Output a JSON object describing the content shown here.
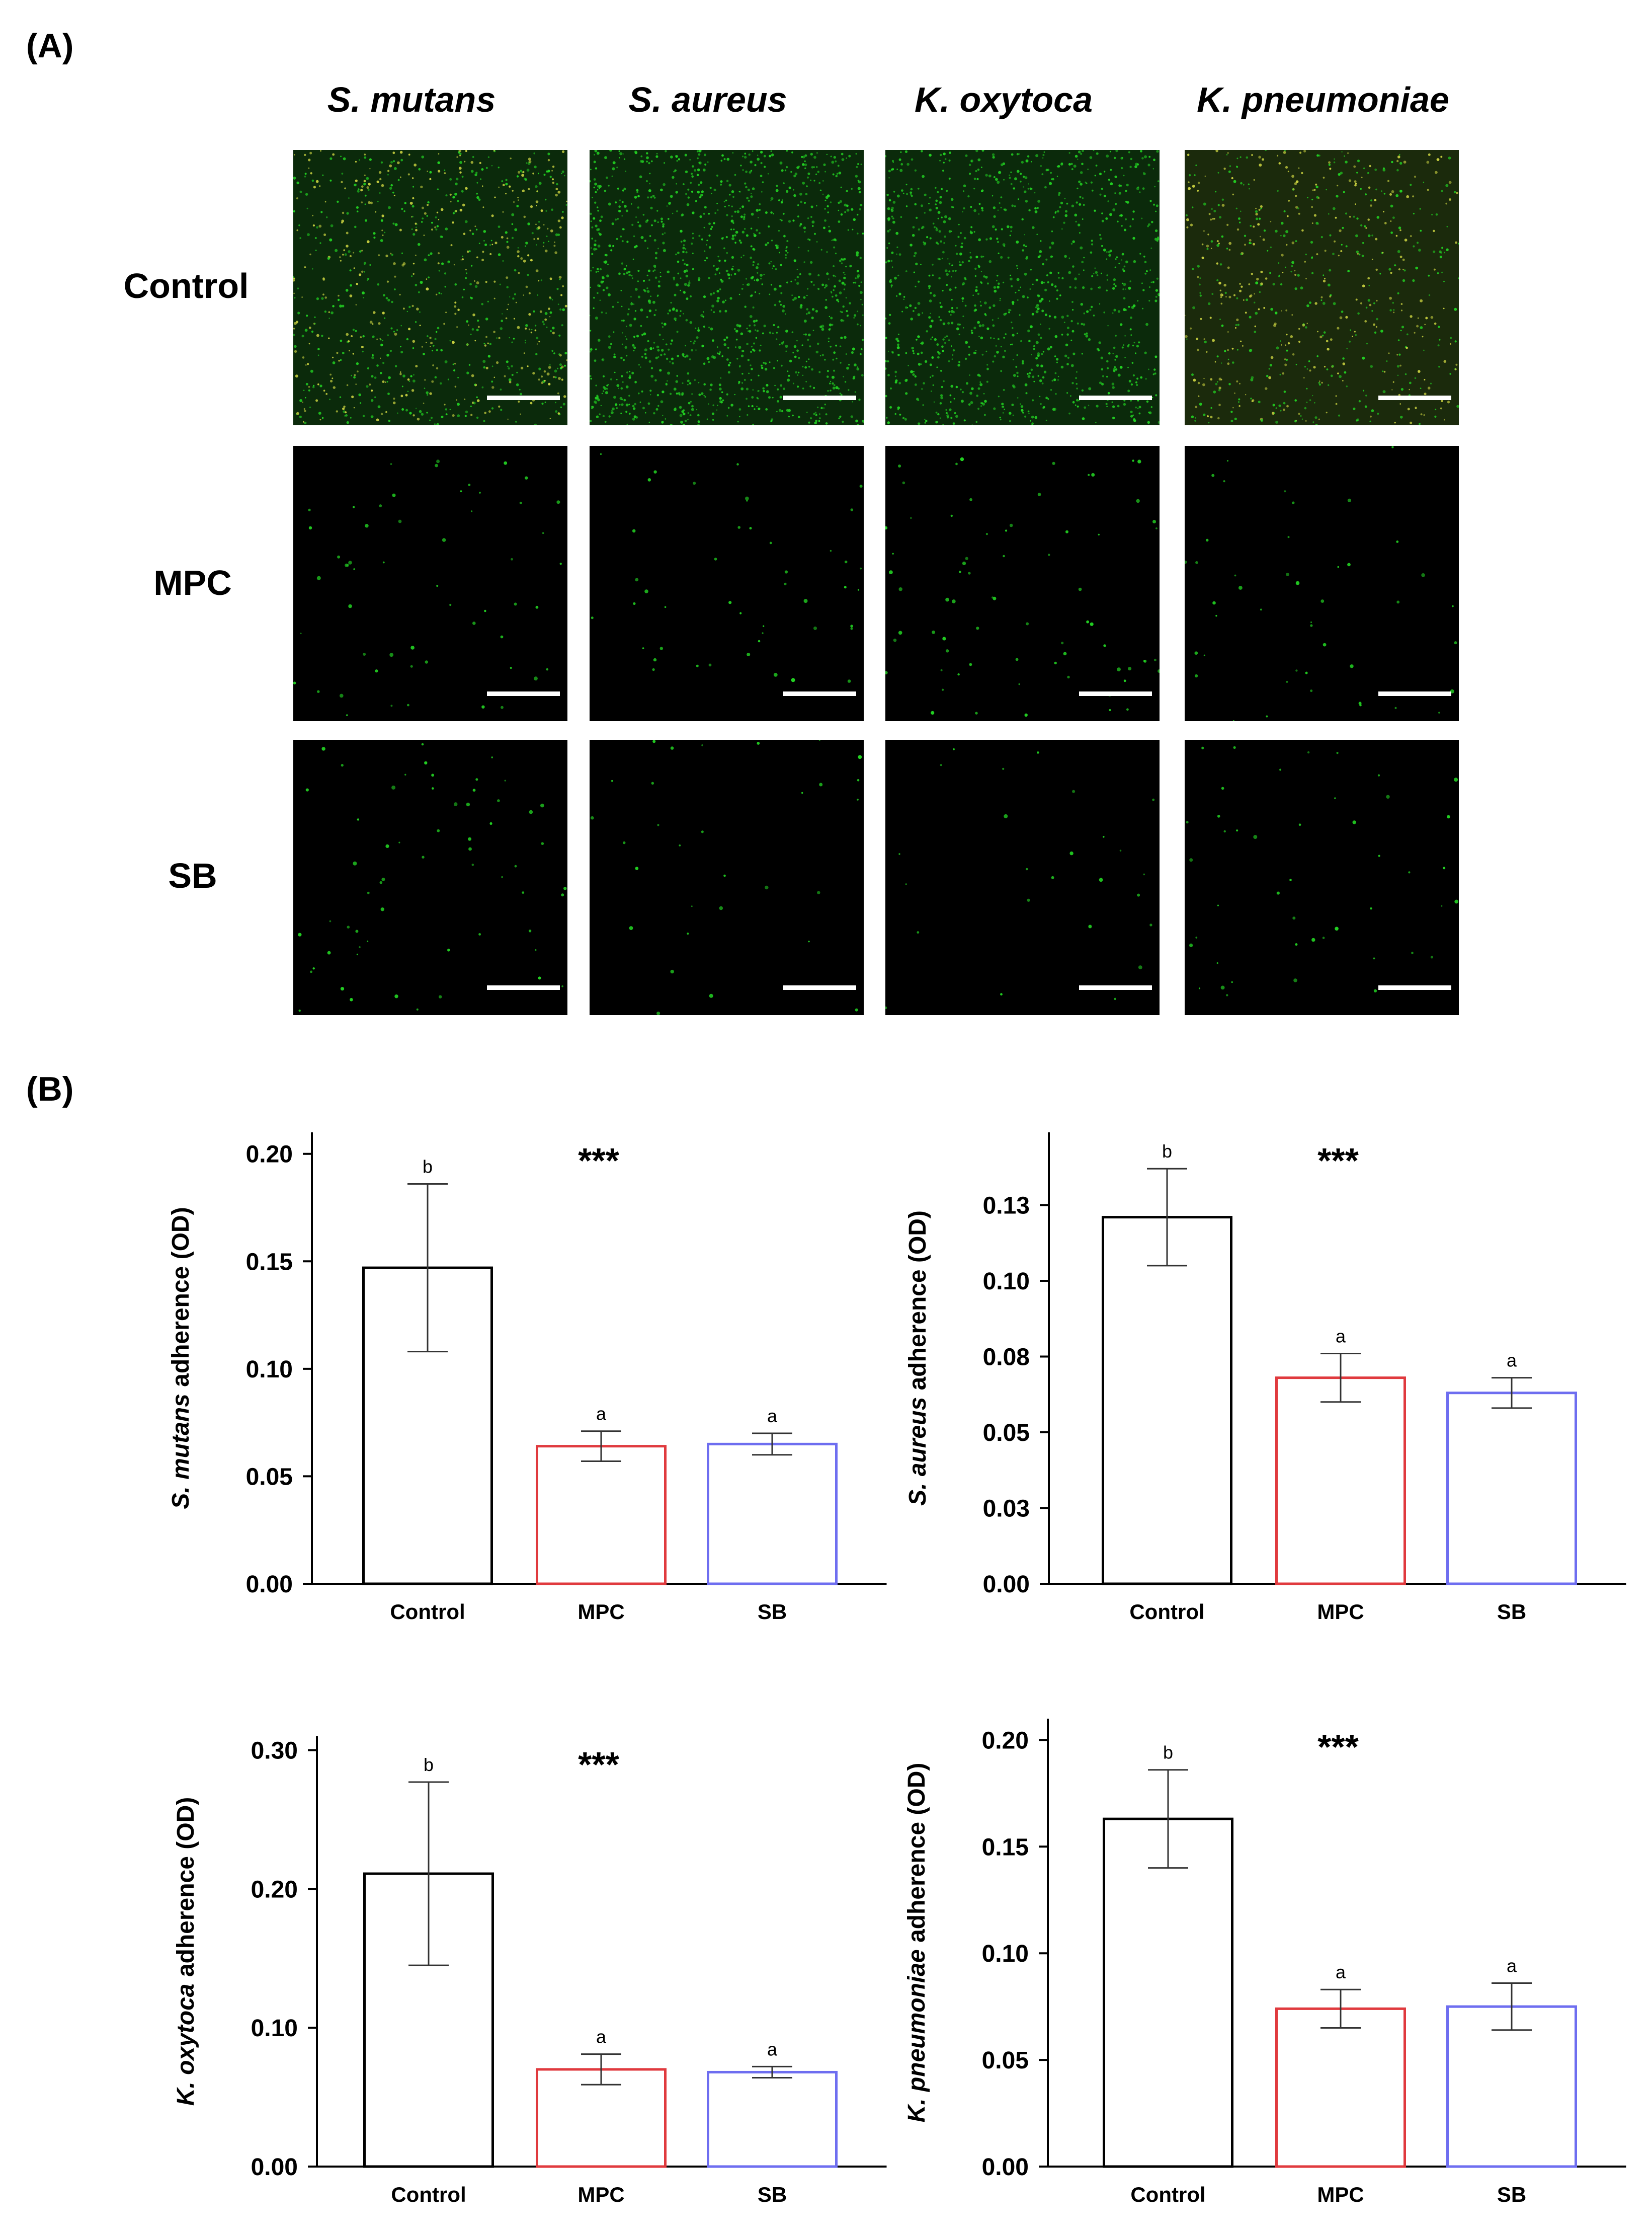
{
  "panel_a_label": "(A)",
  "panel_b_label": "(B)",
  "species": [
    "S. mutans",
    "S. aureus",
    "K. oxytoca",
    "K. pneumoniae"
  ],
  "conditions": [
    "Control",
    "MPC",
    "SB"
  ],
  "colors": {
    "Control": "#000000",
    "MPC": "#e03a3e",
    "SB": "#6e6ef0",
    "cell": "#22d022",
    "cell_yellow": "#c8d040"
  },
  "chart_data": [
    {
      "type": "bar",
      "categories": [
        "Control",
        "MPC",
        "SB"
      ],
      "values": [
        0.147,
        0.064,
        0.065
      ],
      "errors": [
        0.039,
        0.007,
        0.005
      ],
      "letters": [
        "b",
        "a",
        "a"
      ],
      "significance": "***",
      "ylabel_italic": "S. mutans",
      "ylabel_rest": " adherence (OD)",
      "yticks": [
        0.0,
        0.05,
        0.1,
        0.15,
        0.2
      ],
      "ytick_labels": [
        "0.00",
        "0.05",
        "0.10",
        "0.15",
        "0.20"
      ],
      "ylim": [
        0,
        0.21
      ]
    },
    {
      "type": "bar",
      "categories": [
        "Control",
        "MPC",
        "SB"
      ],
      "values": [
        0.121,
        0.068,
        0.063
      ],
      "errors": [
        0.016,
        0.008,
        0.005
      ],
      "letters": [
        "b",
        "a",
        "a"
      ],
      "significance": "***",
      "ylabel_italic": "S. aureus",
      "ylabel_rest": " adherence (OD)",
      "yticks": [
        0.0,
        0.025,
        0.05,
        0.075,
        0.1,
        0.125
      ],
      "ytick_labels": [
        "0.00",
        "0.03",
        "0.05",
        "0.08",
        "0.10",
        "0.13"
      ],
      "ylim": [
        0,
        0.149
      ]
    },
    {
      "type": "bar",
      "categories": [
        "Control",
        "MPC",
        "SB"
      ],
      "values": [
        0.211,
        0.07,
        0.068
      ],
      "errors": [
        0.066,
        0.011,
        0.004
      ],
      "letters": [
        "b",
        "a",
        "a"
      ],
      "significance": "***",
      "ylabel_italic": "K. oxytoca",
      "ylabel_rest": " adherence (OD)",
      "yticks": [
        0.0,
        0.1,
        0.2,
        0.3
      ],
      "ytick_labels": [
        "0.00",
        "0.10",
        "0.20",
        "0.30"
      ],
      "ylim": [
        0,
        0.31
      ]
    },
    {
      "type": "bar",
      "categories": [
        "Control",
        "MPC",
        "SB"
      ],
      "values": [
        0.163,
        0.074,
        0.075
      ],
      "errors": [
        0.023,
        0.009,
        0.011
      ],
      "letters": [
        "b",
        "a",
        "a"
      ],
      "significance": "***",
      "ylabel_italic": "K. pneumoniae",
      "ylabel_rest": " adherence (OD)",
      "yticks": [
        0.0,
        0.05,
        0.1,
        0.15,
        0.2
      ],
      "ytick_labels": [
        "0.00",
        "0.05",
        "0.10",
        "0.15",
        "0.20"
      ],
      "ylim": [
        0,
        0.21
      ]
    }
  ]
}
